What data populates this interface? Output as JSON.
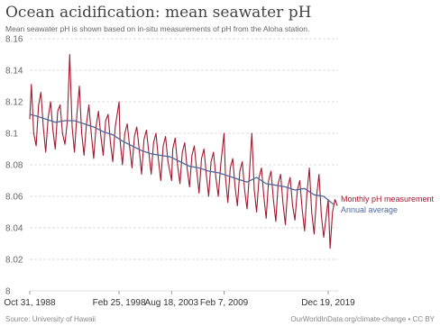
{
  "title": "Ocean acidification: mean seawater pH",
  "subtitle": "Mean seawater pH is shown based on in-situ measurements of pH from the Aloha station.",
  "source": "Source: University of Hawaii",
  "credit": "OurWorldInData.org/climate-change • CC BY",
  "colors": {
    "monthly": "#a2192e",
    "annual": "#4c6a9c",
    "grid": "#dddddd"
  },
  "chart_data": {
    "type": "line",
    "title": "Ocean acidification: mean seawater pH",
    "xlabel": "",
    "ylabel": "",
    "ylim": [
      8,
      8.16
    ],
    "y_ticks": [
      "8",
      "8.02",
      "8.04",
      "8.06",
      "8.08",
      "8.1",
      "8.12",
      "8.14",
      "8.16"
    ],
    "x_ticks": [
      "Oct 31, 1988",
      "Feb 25, 1998",
      "Aug 18, 2003",
      "Feb 7, 2009",
      "Dec 19, 2019"
    ],
    "xlim": [
      "1988-10-31",
      "2020-12-31"
    ],
    "grid": true,
    "legend": "right",
    "series": [
      {
        "name": "Monthly pH measurement",
        "x": [
          "1988-10-31",
          "1989-01-01",
          "1989-04-01",
          "1989-07-01",
          "1989-10-01",
          "1990-01-01",
          "1990-04-01",
          "1990-07-01",
          "1990-10-01",
          "1991-01-01",
          "1991-04-01",
          "1991-07-01",
          "1991-10-01",
          "1992-01-01",
          "1992-04-01",
          "1992-07-01",
          "1992-10-01",
          "1993-01-01",
          "1993-04-01",
          "1993-07-01",
          "1993-10-01",
          "1994-01-01",
          "1994-04-01",
          "1994-07-01",
          "1994-10-01",
          "1995-01-01",
          "1995-04-01",
          "1995-07-01",
          "1995-10-01",
          "1996-01-01",
          "1996-04-01",
          "1996-07-01",
          "1996-10-01",
          "1997-01-01",
          "1997-04-01",
          "1997-07-01",
          "1997-10-01",
          "1998-02-25",
          "1998-04-01",
          "1998-07-01",
          "1998-10-01",
          "1999-01-01",
          "1999-04-01",
          "1999-07-01",
          "1999-10-01",
          "2000-01-01",
          "2000-04-01",
          "2000-07-01",
          "2000-10-01",
          "2001-01-01",
          "2001-04-01",
          "2001-07-01",
          "2001-10-01",
          "2002-01-01",
          "2002-04-01",
          "2002-07-01",
          "2002-10-01",
          "2003-01-01",
          "2003-04-01",
          "2003-08-18",
          "2003-10-01",
          "2004-01-01",
          "2004-04-01",
          "2004-07-01",
          "2004-10-01",
          "2005-01-01",
          "2005-04-01",
          "2005-07-01",
          "2005-10-01",
          "2006-01-01",
          "2006-04-01",
          "2006-07-01",
          "2006-10-01",
          "2007-01-01",
          "2007-04-01",
          "2007-07-01",
          "2007-10-01",
          "2008-01-01",
          "2008-04-01",
          "2008-07-01",
          "2008-10-01",
          "2009-02-07",
          "2009-04-01",
          "2009-07-01",
          "2009-10-01",
          "2010-01-01",
          "2010-04-01",
          "2010-07-01",
          "2010-10-01",
          "2011-01-01",
          "2011-04-01",
          "2011-07-01",
          "2011-10-01",
          "2012-01-01",
          "2012-04-01",
          "2012-07-01",
          "2012-10-01",
          "2013-01-01",
          "2013-04-01",
          "2013-07-01",
          "2013-10-01",
          "2014-01-01",
          "2014-04-01",
          "2014-07-01",
          "2014-10-01",
          "2015-01-01",
          "2015-04-01",
          "2015-07-01",
          "2015-10-01",
          "2016-01-01",
          "2016-04-01",
          "2016-07-01",
          "2016-10-01",
          "2017-01-01",
          "2017-04-01",
          "2017-07-01",
          "2017-10-01",
          "2018-01-01",
          "2018-04-01",
          "2018-07-01",
          "2018-10-01",
          "2019-01-01",
          "2019-04-01",
          "2019-07-01",
          "2019-12-19",
          "2020-03-01",
          "2020-06-01",
          "2020-09-01",
          "2020-12-01"
        ],
        "values": [
          8.109,
          8.131,
          8.1,
          8.092,
          8.118,
          8.126,
          8.104,
          8.088,
          8.11,
          8.12,
          8.102,
          8.09,
          8.114,
          8.118,
          8.1,
          8.093,
          8.108,
          8.15,
          8.104,
          8.088,
          8.112,
          8.13,
          8.1,
          8.086,
          8.106,
          8.118,
          8.1,
          8.084,
          8.104,
          8.114,
          8.098,
          8.086,
          8.108,
          8.112,
          8.094,
          8.082,
          8.104,
          8.12,
          8.096,
          8.08,
          8.1,
          8.106,
          8.092,
          8.078,
          8.098,
          8.104,
          8.09,
          8.074,
          8.096,
          8.102,
          8.088,
          8.074,
          8.094,
          8.1,
          8.084,
          8.07,
          8.092,
          8.098,
          8.082,
          8.07,
          8.09,
          8.097,
          8.08,
          8.068,
          8.088,
          8.094,
          8.078,
          8.066,
          8.086,
          8.092,
          8.076,
          8.062,
          8.084,
          8.09,
          8.074,
          8.06,
          8.082,
          8.088,
          8.072,
          8.06,
          8.08,
          8.1,
          8.072,
          8.056,
          8.078,
          8.084,
          8.066,
          8.054,
          8.076,
          8.082,
          8.064,
          8.052,
          8.074,
          8.1,
          8.064,
          8.05,
          8.072,
          8.078,
          8.06,
          8.046,
          8.07,
          8.076,
          8.058,
          8.044,
          8.068,
          8.074,
          8.056,
          8.042,
          8.066,
          8.072,
          8.054,
          8.045,
          8.064,
          8.07,
          8.052,
          8.038,
          8.062,
          8.078,
          8.05,
          8.036,
          8.06,
          8.074,
          8.048,
          8.034,
          8.058,
          8.027,
          8.05,
          8.058,
          8.054
        ]
      },
      {
        "name": "Annual average",
        "x": [
          "1988-10-31",
          "1989-07-01",
          "1990-07-01",
          "1991-07-01",
          "1992-07-01",
          "1993-07-01",
          "1994-07-01",
          "1995-07-01",
          "1996-07-01",
          "1997-07-01",
          "1998-07-01",
          "1999-07-01",
          "2000-07-01",
          "2001-07-01",
          "2002-07-01",
          "2003-07-01",
          "2004-07-01",
          "2005-07-01",
          "2006-07-01",
          "2007-07-01",
          "2008-07-01",
          "2009-07-01",
          "2010-07-01",
          "2011-07-01",
          "2012-07-01",
          "2013-07-01",
          "2014-07-01",
          "2015-07-01",
          "2016-07-01",
          "2017-07-01",
          "2018-07-01",
          "2019-07-01",
          "2020-07-01"
        ],
        "values": [
          8.112,
          8.111,
          8.109,
          8.107,
          8.108,
          8.108,
          8.106,
          8.104,
          8.101,
          8.099,
          8.095,
          8.092,
          8.089,
          8.087,
          8.086,
          8.085,
          8.082,
          8.079,
          8.078,
          8.076,
          8.075,
          8.073,
          8.071,
          8.069,
          8.072,
          8.068,
          8.067,
          8.066,
          8.064,
          8.065,
          8.061,
          8.06,
          8.055
        ]
      }
    ]
  }
}
